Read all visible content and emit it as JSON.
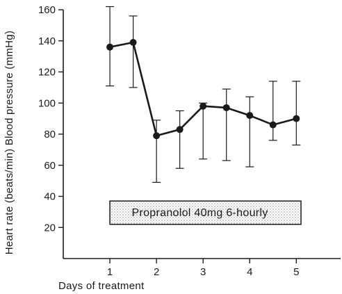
{
  "chart_data": {
    "type": "line",
    "xlabel": "Days of treatment",
    "ylabel": "Heart rate (beats/min) Blood pressure (mmHg)",
    "xlim": [
      0,
      5.95
    ],
    "ylim": [
      0,
      160
    ],
    "x_ticks": [
      1,
      2,
      3,
      4,
      5
    ],
    "y_ticks": [
      20,
      40,
      60,
      80,
      100,
      120,
      140,
      160
    ],
    "grid": false,
    "series": [
      {
        "points": [
          {
            "x": 1.0,
            "y": 136,
            "low": 111,
            "high": 162
          },
          {
            "x": 1.5,
            "y": 139,
            "low": 110,
            "high": 156
          },
          {
            "x": 2.0,
            "y": 79,
            "low": 49,
            "high": 89
          },
          {
            "x": 2.5,
            "y": 83,
            "low": 58,
            "high": 95
          },
          {
            "x": 3.0,
            "y": 98,
            "low": 64,
            "high": 100
          },
          {
            "x": 3.5,
            "y": 97,
            "low": 63,
            "high": 109
          },
          {
            "x": 4.0,
            "y": 92,
            "low": 59,
            "high": 104
          },
          {
            "x": 4.5,
            "y": 86,
            "low": 76,
            "high": 114
          },
          {
            "x": 5.0,
            "y": 90,
            "low": 73,
            "high": 114
          }
        ]
      }
    ],
    "annotation": {
      "text": "Propranolol 40mg 6-hourly",
      "x_start": 1.0,
      "x_end": 5.1,
      "y_low": 22,
      "y_high": 37
    }
  }
}
